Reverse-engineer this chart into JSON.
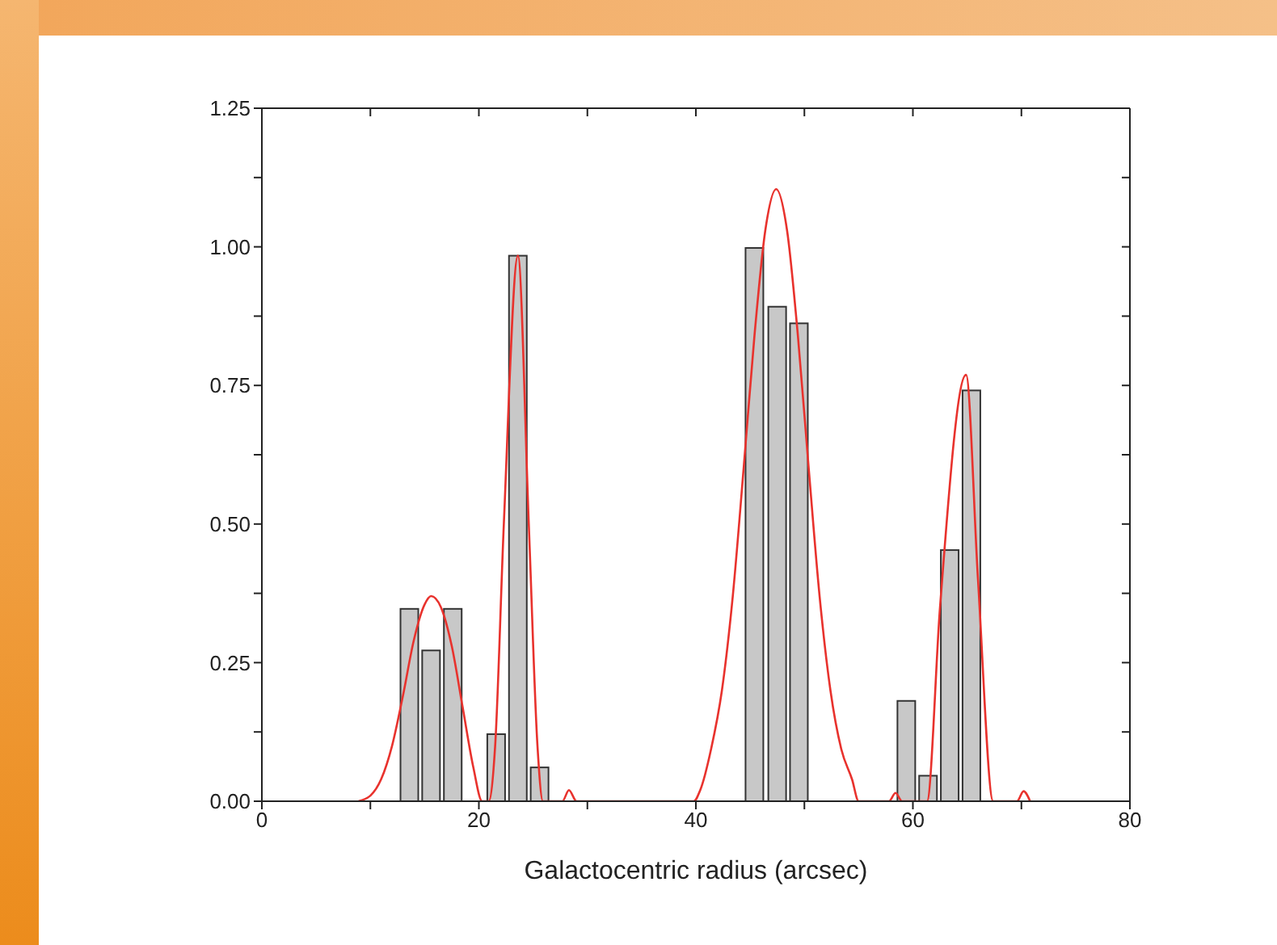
{
  "chart_data": {
    "type": "bar",
    "xlabel": "Galactocentric radius (arcsec)",
    "xlim": [
      0,
      80
    ],
    "xticks": [
      0,
      {
        "value": 10,
        "label": null
      },
      20,
      {
        "value": 30,
        "label": null
      },
      40,
      {
        "value": 50,
        "label": null
      },
      60,
      {
        "value": 70,
        "label": null
      },
      80
    ],
    "ylim": [
      0,
      1.25
    ],
    "yticks": [
      {
        "value": 0,
        "label": "0.00"
      },
      {
        "value": 0.125,
        "label": null
      },
      {
        "value": 0.25,
        "label": "0.25"
      },
      {
        "value": 0.375,
        "label": null
      },
      {
        "value": 0.5,
        "label": "0.50"
      },
      {
        "value": 0.625,
        "label": null
      },
      {
        "value": 0.75,
        "label": "0.75"
      },
      {
        "value": 0.875,
        "label": null
      },
      {
        "value": 1,
        "label": "1.00"
      },
      {
        "value": 1.125,
        "label": null
      },
      1.25
    ],
    "grid": false,
    "legend": false,
    "series": [
      {
        "color": "#c8c8c8",
        "x": [
          13.6,
          15.6,
          17.6,
          21.6,
          23.6,
          25.6,
          45.4,
          47.5,
          49.5,
          59.4,
          61.4,
          63.4,
          65.4
        ],
        "values": [
          0.347,
          0.272,
          0.347,
          0.121,
          0.984,
          0.061,
          0.998,
          0.892,
          0.862,
          0.181,
          0.046,
          0.453,
          0.741
        ]
      },
      {
        "type": "line",
        "color": "#e8322d",
        "x": [
          8.9,
          10,
          11,
          12,
          13,
          14,
          15,
          15.6,
          16.5,
          17.5,
          18.5,
          19.5,
          20.3,
          20.9,
          21.5,
          22.3,
          23.6,
          24.6,
          25.4,
          25.9,
          27.7,
          28.3,
          29,
          39.8,
          40.4,
          41.4,
          42.4,
          43.4,
          44.4,
          45.4,
          46.4,
          47.4,
          48.4,
          49.4,
          50.4,
          51.4,
          52.4,
          53.4,
          54.4,
          55,
          57.8,
          58.4,
          59,
          61.3,
          62.5,
          64.9,
          66,
          67.4,
          69.6,
          70.2,
          70.8
        ],
        "values": [
          0,
          0.01,
          0.04,
          0.1,
          0.19,
          0.29,
          0.355,
          0.37,
          0.35,
          0.28,
          0.17,
          0.06,
          0,
          0,
          0.1,
          0.5,
          0.984,
          0.5,
          0.1,
          0,
          0,
          0.02,
          0,
          0,
          0.02,
          0.094,
          0.2,
          0.37,
          0.6,
          0.84,
          1.03,
          1.104,
          1.03,
          0.84,
          0.6,
          0.37,
          0.2,
          0.094,
          0.039,
          0,
          0,
          0.015,
          0,
          0,
          0.35,
          0.769,
          0.4,
          0,
          0,
          0.018,
          0
        ]
      }
    ]
  }
}
